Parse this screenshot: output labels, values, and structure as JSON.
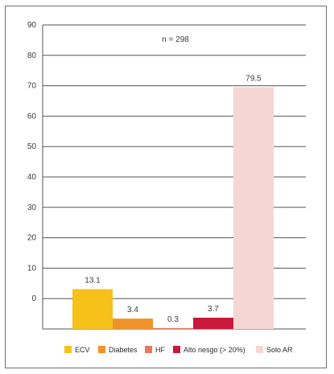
{
  "chart_data": {
    "type": "bar",
    "categories": [
      "ECV",
      "Diabetes",
      "HF",
      "Alto riesgo (> 20%)",
      "Solo AR"
    ],
    "values": [
      13.1,
      3.4,
      0.3,
      3.7,
      79.5
    ],
    "value_labels": [
      "13.1",
      "3.4",
      "0.3",
      "3.7",
      "79.5"
    ],
    "colors": [
      "#f6c11b",
      "#f0922a",
      "#e9775e",
      "#c8183b",
      "#f6d6d3"
    ],
    "ylim": [
      -10,
      90
    ],
    "y_ticks": [
      0,
      10,
      20,
      30,
      40,
      50,
      60,
      70,
      80,
      90
    ],
    "y_tick_labels": [
      "",
      "0",
      "10",
      "20",
      "30",
      "40",
      "50",
      "60",
      "70",
      "80",
      "90"
    ],
    "y_tick_positions": [
      -10,
      0,
      10,
      20,
      30,
      40,
      50,
      60,
      70,
      80,
      90
    ],
    "annotation": "n = 298",
    "grid": true,
    "legend": {
      "position": "bottom",
      "entries": [
        "ECV",
        "Diabetes",
        "HF",
        "Alto riesgo (> 20%)",
        "Solo AR"
      ]
    }
  }
}
